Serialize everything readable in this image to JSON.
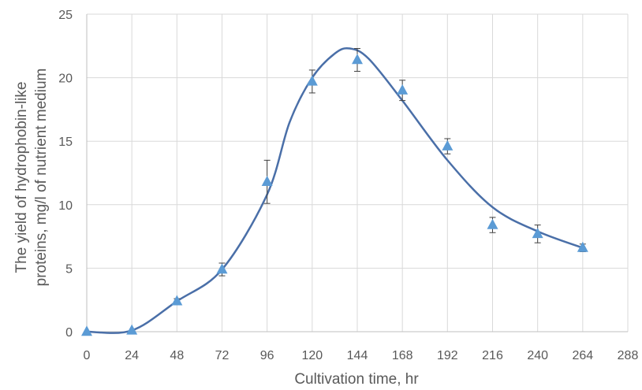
{
  "chart_data": {
    "type": "scatter",
    "title": "",
    "xlabel": "Cultivation time, hr",
    "ylabel_lines": [
      "The yield of hydrophobin-like",
      "proteins, mg/l of nutrient medium"
    ],
    "xlim": [
      0,
      288
    ],
    "ylim": [
      0,
      25
    ],
    "x_ticks": [
      0,
      24,
      48,
      72,
      96,
      120,
      144,
      168,
      192,
      216,
      240,
      264,
      288
    ],
    "y_ticks": [
      0,
      5,
      10,
      15,
      20,
      25
    ],
    "grid": true,
    "legend": "none",
    "series": [
      {
        "marker": "triangle",
        "color": "#5b9bd5",
        "x": [
          0,
          24,
          48,
          72,
          96,
          120,
          144,
          168,
          192,
          216,
          240,
          264
        ],
        "y": [
          0.0,
          0.1,
          2.4,
          4.9,
          11.8,
          19.7,
          21.4,
          19.0,
          14.6,
          8.4,
          7.7,
          6.6
        ],
        "error": [
          0,
          0,
          0.2,
          0.5,
          1.7,
          0.9,
          0.9,
          0.8,
          0.6,
          0.6,
          0.7,
          0.3
        ]
      }
    ],
    "trend_line": {
      "color": "#4a6fa8",
      "x": [
        0,
        24,
        48,
        72,
        96,
        108,
        120,
        132,
        140,
        150,
        168,
        192,
        216,
        240,
        264
      ],
      "y": [
        0.0,
        0.1,
        2.4,
        4.9,
        10.8,
        16.5,
        20.0,
        21.9,
        22.3,
        21.5,
        18.2,
        13.5,
        9.8,
        7.9,
        6.6
      ]
    }
  }
}
